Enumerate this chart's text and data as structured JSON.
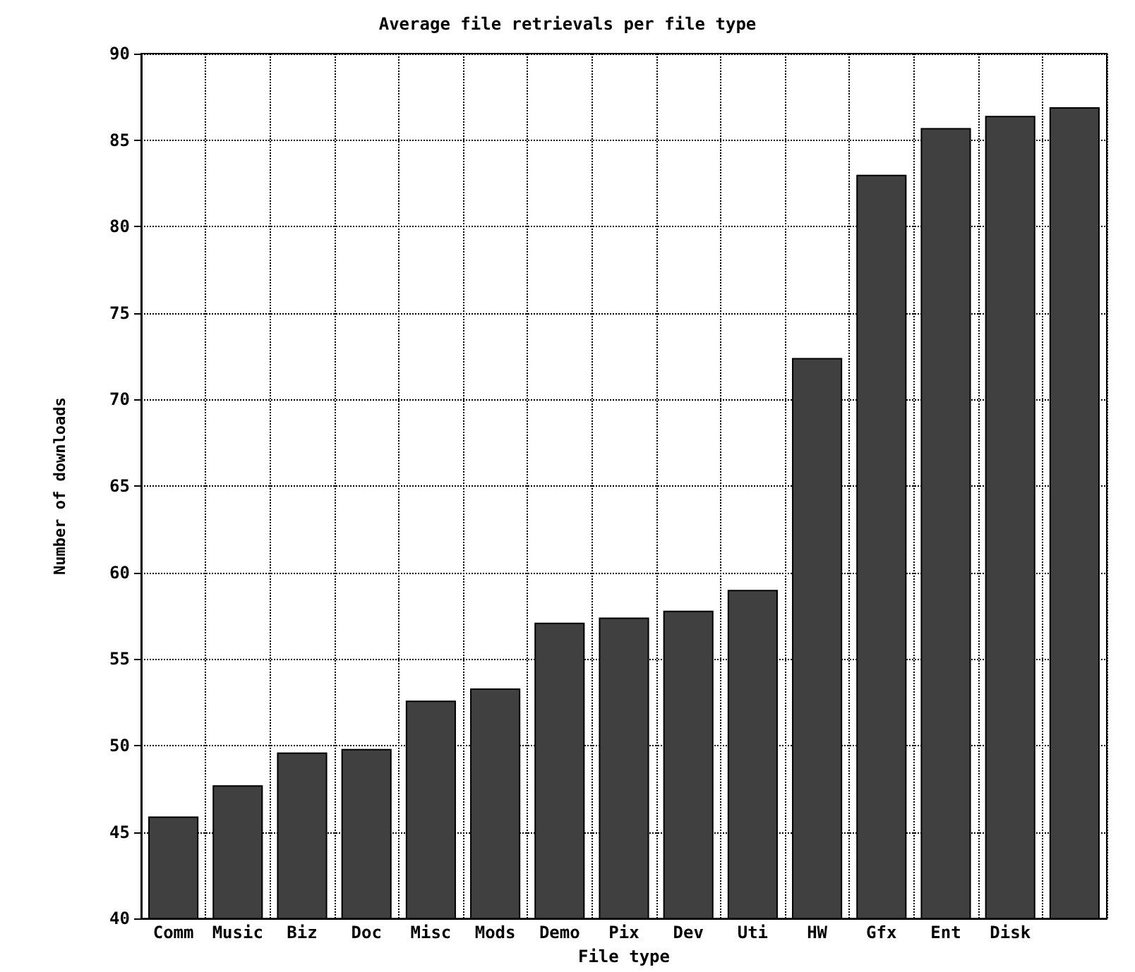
{
  "chart_data": {
    "type": "bar",
    "title": "Average file retrievals per file type",
    "xlabel": "File type",
    "ylabel": "Number of downloads",
    "categories": [
      "Comm",
      "Music",
      "Biz",
      "Doc",
      "Misc",
      "Mods",
      "Demo",
      "Pix",
      "Dev",
      "Uti",
      "HW",
      "Gfx",
      "Ent",
      "Disk",
      null
    ],
    "values": [
      45.9,
      47.7,
      49.6,
      49.8,
      52.6,
      53.3,
      57.1,
      57.4,
      57.8,
      59.0,
      72.4,
      83.0,
      85.7,
      86.4,
      86.9
    ],
    "color": "#404040",
    "ylim": [
      40,
      90
    ],
    "yticks": [
      40,
      45,
      50,
      55,
      60,
      65,
      70,
      75,
      80,
      85,
      90
    ],
    "grid": true
  }
}
